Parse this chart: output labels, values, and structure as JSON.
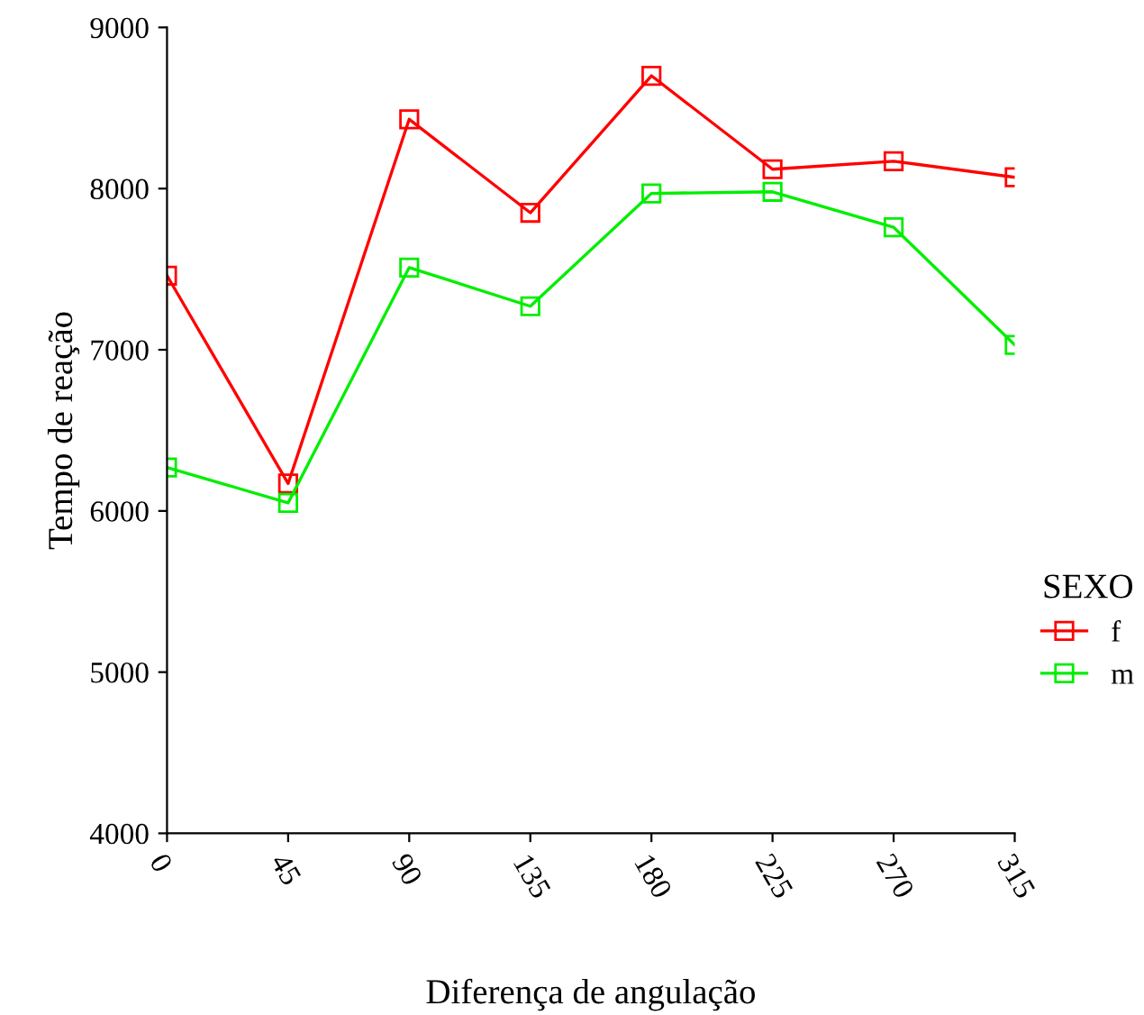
{
  "chart_data": {
    "type": "line",
    "xlabel": "Diferença de angulação",
    "ylabel": "Tempo de reação",
    "legend_title": "SEXO",
    "categories": [
      "0",
      "45",
      "90",
      "135",
      "180",
      "225",
      "270",
      "315"
    ],
    "series": [
      {
        "name": "f",
        "color": "#ff0000",
        "values": [
          7460,
          6170,
          8430,
          7850,
          8700,
          8120,
          8170,
          8070
        ]
      },
      {
        "name": "m",
        "color": "#00ee00",
        "values": [
          6270,
          6050,
          7510,
          7270,
          7970,
          7980,
          7760,
          7030
        ]
      }
    ],
    "ylim": [
      4000,
      9000
    ],
    "yticks": [
      4000,
      5000,
      6000,
      7000,
      8000,
      9000
    ],
    "grid": false,
    "legend": "right",
    "marker": "square",
    "line_style": "solid"
  }
}
